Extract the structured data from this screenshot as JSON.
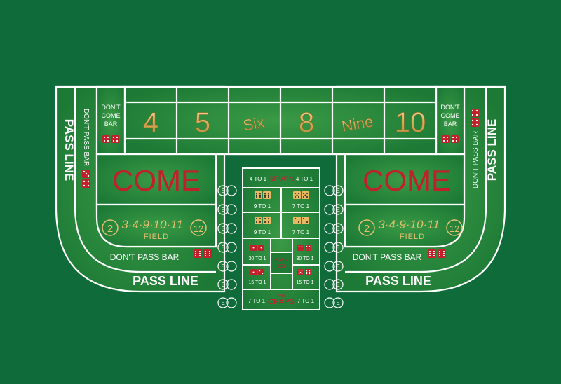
{
  "colors": {
    "felt": "#0f6b3a",
    "felt_light": "#2f8a3c",
    "line": "#ffffff",
    "red": "#c0202a",
    "gold": "#e3c070"
  },
  "pass_line": "PASS LINE",
  "dont_pass_bar": "DON'T PASS BAR",
  "dont_pass_bar_short": "DON'T PASS BAR",
  "dont_come_bar": [
    "DON'T",
    "COME",
    "BAR"
  ],
  "come": "COME",
  "field": {
    "label": "FIELD",
    "numbers": "3·4·9·10·11",
    "left_circle": "2",
    "right_circle": "12"
  },
  "place_numbers": [
    {
      "label": "4",
      "style": "digit"
    },
    {
      "label": "5",
      "style": "digit"
    },
    {
      "label": "Six",
      "style": "word"
    },
    {
      "label": "8",
      "style": "digit"
    },
    {
      "label": "Nine",
      "style": "word"
    },
    {
      "label": "10",
      "style": "digit"
    }
  ],
  "props": {
    "seven": {
      "left": "4 TO 1",
      "label": "SEVEN",
      "right": "4 TO 1"
    },
    "hardways": [
      "9 TO 1",
      "7 TO 1",
      "9 TO 1",
      "7 TO 1"
    ],
    "horn": {
      "top_left": "30 TO 1",
      "top_right": "30 TO 1",
      "bottom_left": "15 TO 1",
      "bottom_right": "15 TO 1",
      "center": [
        "HORN",
        "BET"
      ]
    },
    "any_craps": {
      "left": "7 TO 1",
      "label_top": "ANY",
      "label": "CRAPS",
      "right": "7 TO 1"
    }
  },
  "ce_label": "E",
  "icons": {
    "dice": "dice-icon",
    "ce_circle": "ce-circle-icon"
  }
}
